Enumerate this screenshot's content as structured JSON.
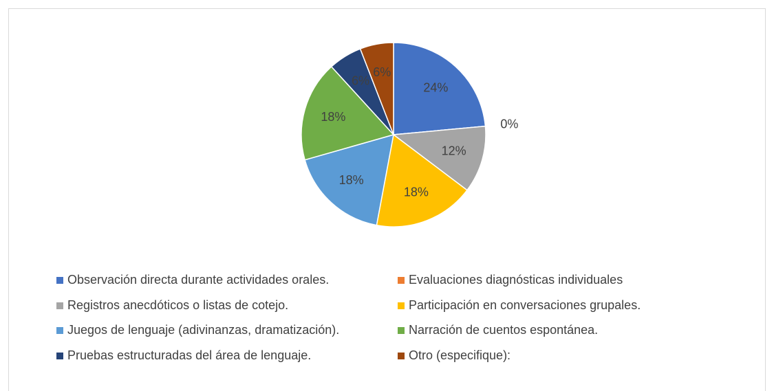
{
  "chart_data": {
    "type": "pie",
    "categories": [
      "Observación directa durante actividades orales.",
      "Evaluaciones diagnósticas individuales",
      "Registros anecdóticos o listas de cotejo.",
      "Participación en conversaciones grupales.",
      "Juegos de lenguaje (adivinanzas, dramatización).",
      "Narración de cuentos espontánea.",
      "Pruebas estructuradas del área de lenguaje.",
      "Otro (especifique):"
    ],
    "values": [
      24,
      0,
      12,
      18,
      18,
      18,
      6,
      6
    ],
    "value_labels": [
      "24%",
      "0%",
      "12%",
      "18%",
      "18%",
      "18%",
      "6%",
      "6%"
    ],
    "colors": [
      "#4472c4",
      "#ed7d31",
      "#a5a5a5",
      "#ffc000",
      "#5b9bd5",
      "#70ad47",
      "#264478",
      "#9e480e"
    ],
    "legend": "bottom"
  }
}
